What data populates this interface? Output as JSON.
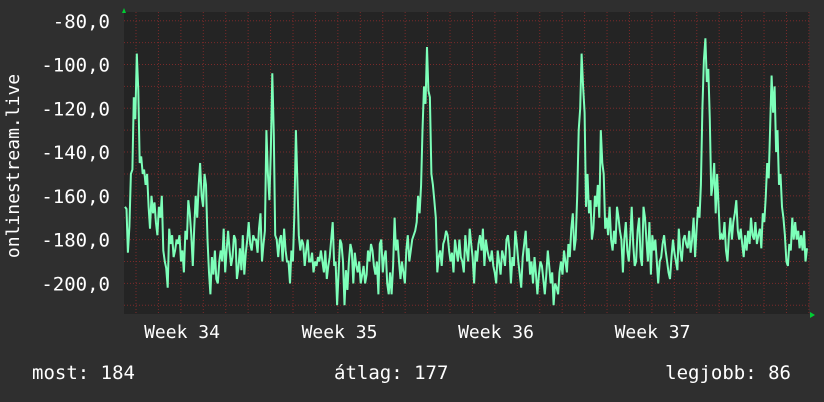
{
  "colors": {
    "background": "#2f2f2f",
    "plot_background": "#242424",
    "grid": "#7a2a2a",
    "line": "#7dffb9",
    "axis_arrow": "#00cc33",
    "text": "#ffffff"
  },
  "footer": {
    "current": "most: 184",
    "average": "átlag: 177",
    "best": "legjobb: 86"
  },
  "chart_data": {
    "type": "line",
    "title": "",
    "ylabel": "onlinestream.live",
    "xlabel": "",
    "ylim": [
      -214,
      -76
    ],
    "y_ticks": [
      -80,
      -100,
      -120,
      -140,
      -160,
      -180,
      -200
    ],
    "y_tick_labels": [
      "-80,0",
      "-100,0",
      "-120,0",
      "-140,0",
      "-160,0",
      "-180,0",
      "-200,0"
    ],
    "x_ticks": [
      "Week 34",
      "Week 35",
      "Week 36",
      "Week 37"
    ],
    "grid": true,
    "series": [
      {
        "values": [
          -165,
          -166,
          -186,
          -174,
          -150,
          -148,
          -115,
          -125,
          -95,
          -112,
          -145,
          -142,
          -150,
          -148,
          -155,
          -150,
          -165,
          -175,
          -160,
          -168,
          -163,
          -172,
          -178,
          -165,
          -170,
          -160,
          -185,
          -190,
          -193,
          -202,
          -175,
          -182,
          -178,
          -188,
          -185,
          -180,
          -182,
          -178,
          -190,
          -185,
          -195,
          -176,
          -180,
          -162,
          -168,
          -178,
          -192,
          -175,
          -160,
          -170,
          -155,
          -145,
          -160,
          -165,
          -150,
          -155,
          -180,
          -195,
          -205,
          -188,
          -196,
          -185,
          -198,
          -200,
          -190,
          -185,
          -190,
          -175,
          -195,
          -185,
          -176,
          -185,
          -192,
          -188,
          -178,
          -180,
          -198,
          -193,
          -184,
          -194,
          -178,
          -196,
          -186,
          -180,
          -172,
          -182,
          -185,
          -178,
          -180,
          -180,
          -186,
          -175,
          -168,
          -190,
          -182,
          -176,
          -130,
          -150,
          -162,
          -140,
          -104,
          -132,
          -178,
          -180,
          -188,
          -180,
          -178,
          -190,
          -175,
          -185,
          -190,
          -190,
          -200,
          -185,
          -190,
          -168,
          -130,
          -152,
          -178,
          -185,
          -180,
          -182,
          -192,
          -185,
          -180,
          -190,
          -190,
          -186,
          -195,
          -190,
          -192,
          -188,
          -190,
          -185,
          -190,
          -195,
          -185,
          -198,
          -192,
          -188,
          -180,
          -172,
          -192,
          -190,
          -210,
          -195,
          -180,
          -182,
          -190,
          -210,
          -194,
          -203,
          -190,
          -182,
          -185,
          -200,
          -186,
          -192,
          -195,
          -190,
          -200,
          -196,
          -192,
          -200,
          -196,
          -185,
          -190,
          -182,
          -185,
          -192,
          -196,
          -190,
          -205,
          -182,
          -180,
          -195,
          -188,
          -185,
          -200,
          -205,
          -195,
          -205,
          -192,
          -170,
          -185,
          -180,
          -190,
          -198,
          -190,
          -195,
          -200,
          -185,
          -178,
          -190,
          -185,
          -180,
          -178,
          -176,
          -172,
          -160,
          -168,
          -155,
          -130,
          -110,
          -118,
          -92,
          -112,
          -115,
          -150,
          -155,
          -162,
          -170,
          -195,
          -188,
          -185,
          -192,
          -182,
          -180,
          -176,
          -178,
          -185,
          -190,
          -186,
          -195,
          -180,
          -185,
          -190,
          -180,
          -188,
          -190,
          -195,
          -178,
          -185,
          -190,
          -175,
          -182,
          -188,
          -200,
          -185,
          -190,
          -182,
          -178,
          -185,
          -175,
          -192,
          -180,
          -185,
          -188,
          -190,
          -185,
          -192,
          -195,
          -200,
          -185,
          -190,
          -196,
          -185,
          -188,
          -192,
          -180,
          -178,
          -185,
          -200,
          -188,
          -192,
          -176,
          -182,
          -190,
          -196,
          -202,
          -188,
          -182,
          -176,
          -190,
          -184,
          -196,
          -190,
          -200,
          -188,
          -196,
          -205,
          -196,
          -190,
          -192,
          -198,
          -205,
          -196,
          -185,
          -192,
          -200,
          -195,
          -210,
          -200,
          -202,
          -205,
          -195,
          -190,
          -196,
          -185,
          -190,
          -195,
          -182,
          -188,
          -175,
          -168,
          -185,
          -180,
          -160,
          -130,
          -120,
          -95,
          -110,
          -122,
          -165,
          -150,
          -168,
          -162,
          -180,
          -175,
          -160,
          -165,
          -155,
          -170,
          -130,
          -145,
          -150,
          -175,
          -170,
          -178,
          -165,
          -180,
          -185,
          -176,
          -182,
          -165,
          -170,
          -176,
          -180,
          -195,
          -180,
          -172,
          -185,
          -190,
          -180,
          -165,
          -182,
          -192,
          -190,
          -176,
          -170,
          -188,
          -192,
          -165,
          -170,
          -180,
          -190,
          -172,
          -196,
          -178,
          -185,
          -180,
          -190,
          -200,
          -190,
          -188,
          -182,
          -178,
          -185,
          -190,
          -195,
          -198,
          -188,
          -180,
          -186,
          -190,
          -194,
          -175,
          -185,
          -190,
          -180,
          -178,
          -182,
          -184,
          -176,
          -186,
          -180,
          -170,
          -188,
          -176,
          -165,
          -170,
          -155,
          -120,
          -98,
          -88,
          -108,
          -102,
          -125,
          -160,
          -155,
          -145,
          -168,
          -150,
          -165,
          -180,
          -178,
          -180,
          -172,
          -185,
          -190,
          -178,
          -170,
          -180,
          -172,
          -168,
          -162,
          -176,
          -180,
          -175,
          -182,
          -188,
          -178,
          -185,
          -176,
          -182,
          -170,
          -178,
          -180,
          -172,
          -182,
          -178,
          -175,
          -184,
          -168,
          -172,
          -160,
          -145,
          -152,
          -128,
          -105,
          -122,
          -110,
          -140,
          -130,
          -155,
          -150,
          -165,
          -170,
          -178,
          -190,
          -192,
          -182,
          -185,
          -170,
          -180,
          -172,
          -180,
          -176,
          -184,
          -178,
          -185,
          -176,
          -190,
          -184
        ]
      }
    ]
  }
}
